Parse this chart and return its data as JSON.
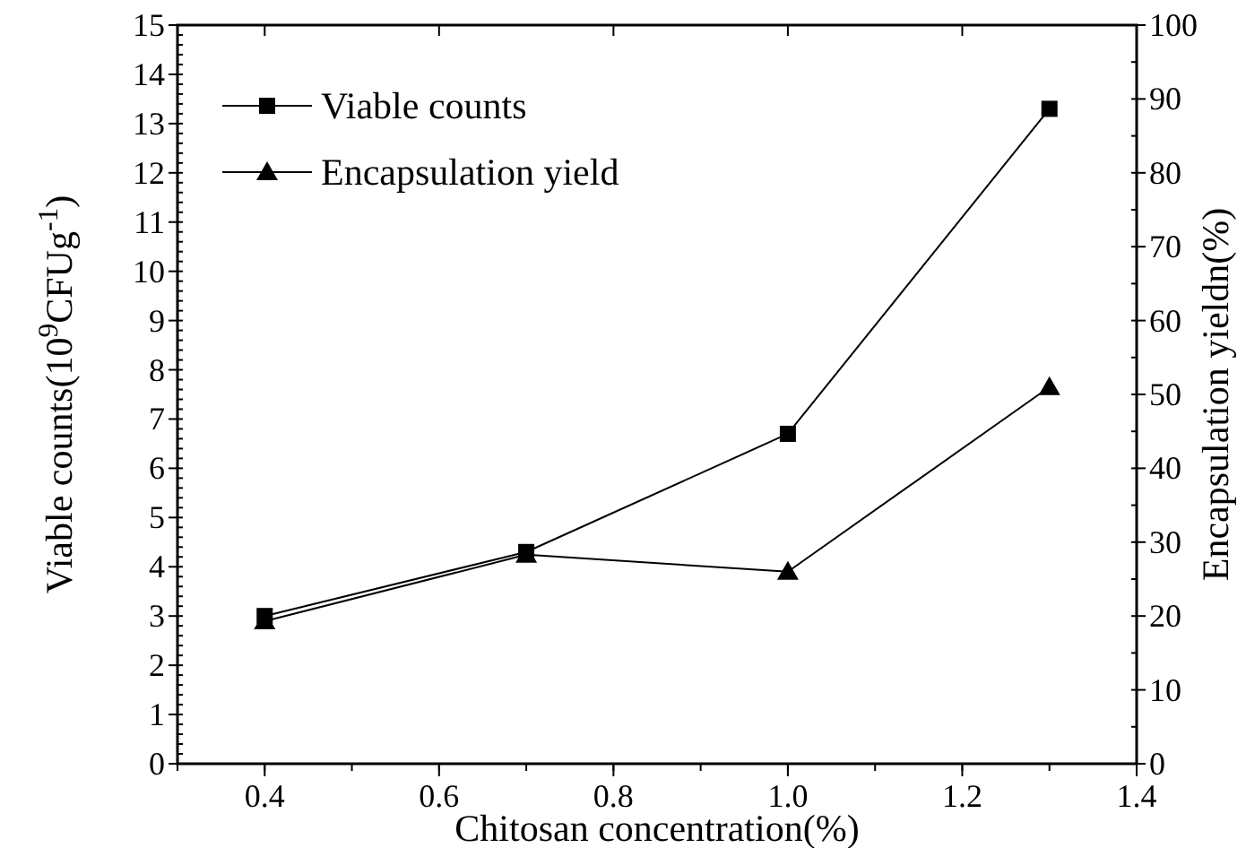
{
  "chart_data": {
    "type": "line",
    "xlabel": "Chitosan concentration(%)",
    "ylabel": "Viable counts(10$^{9}$CFUg$^{-1}$)",
    "y2label": "Encapsulation yieldn(%)",
    "x": [
      0.4,
      0.7,
      1.0,
      1.3
    ],
    "series": [
      {
        "name": "Viable counts",
        "color": "#000000",
        "values": [
          3.0,
          4.3,
          6.7,
          13.3
        ],
        "marker": "square"
      },
      {
        "name": "Encapsulation yield",
        "color": "#000000",
        "values": [
          19.3,
          28.3,
          26,
          51
        ],
        "marker": "triangle",
        "axis": "y2"
      }
    ],
    "xlim": [
      0.3,
      1.4
    ],
    "xticks": [
      0.4,
      0.6,
      0.8,
      {
        "value": 1,
        "label": "1.0"
      },
      1.2,
      1.4
    ],
    "ylim": [
      0,
      15
    ],
    "yticks": [
      0,
      1,
      2,
      3,
      4,
      5,
      6,
      7,
      8,
      9,
      10,
      11,
      12,
      13,
      14,
      15
    ],
    "y2lim": [
      0,
      100
    ],
    "y2ticks": [
      0,
      10,
      20,
      30,
      40,
      50,
      60,
      70,
      80,
      90,
      100
    ],
    "legend": "top left",
    "grid": false,
    "line_style": "solid"
  }
}
